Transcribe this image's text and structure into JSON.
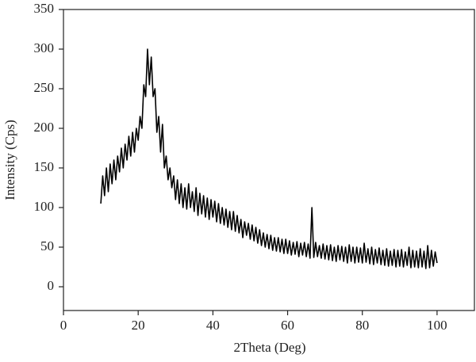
{
  "chart_data": {
    "type": "line",
    "xlabel": "2Theta (Deg)",
    "ylabel": "Intensity (Cps)",
    "xlim": [
      0,
      110
    ],
    "xticks": [
      0,
      20,
      40,
      60,
      80,
      100
    ],
    "ylim": [
      -30,
      350
    ],
    "yticks": [
      0,
      50,
      100,
      150,
      200,
      250,
      300,
      350
    ],
    "x": [
      10,
      10.5,
      11,
      11.5,
      12,
      12.5,
      13,
      13.5,
      14,
      14.5,
      15,
      15.5,
      16,
      16.5,
      17,
      17.5,
      18,
      18.5,
      19,
      19.5,
      20,
      20.5,
      21,
      21.5,
      22,
      22.5,
      23,
      23.5,
      24,
      24.5,
      25,
      25.5,
      26,
      26.5,
      27,
      27.5,
      28,
      28.5,
      29,
      29.5,
      30,
      30.5,
      31,
      31.5,
      32,
      32.5,
      33,
      33.5,
      34,
      34.5,
      35,
      35.5,
      36,
      36.5,
      37,
      37.5,
      38,
      38.5,
      39,
      39.5,
      40,
      40.5,
      41,
      41.5,
      42,
      42.5,
      43,
      43.5,
      44,
      44.5,
      45,
      45.5,
      46,
      46.5,
      47,
      47.5,
      48,
      48.5,
      49,
      49.5,
      50,
      50.5,
      51,
      51.5,
      52,
      52.5,
      53,
      53.5,
      54,
      54.5,
      55,
      55.5,
      56,
      56.5,
      57,
      57.5,
      58,
      58.5,
      59,
      59.5,
      60,
      60.5,
      61,
      61.5,
      62,
      62.5,
      63,
      63.5,
      64,
      64.5,
      65,
      65.5,
      66,
      66.5,
      67,
      67.5,
      68,
      68.5,
      69,
      69.5,
      70,
      70.5,
      71,
      71.5,
      72,
      72.5,
      73,
      73.5,
      74,
      74.5,
      75,
      75.5,
      76,
      76.5,
      77,
      77.5,
      78,
      78.5,
      79,
      79.5,
      80,
      80.5,
      81,
      81.5,
      82,
      82.5,
      83,
      83.5,
      84,
      84.5,
      85,
      85.5,
      86,
      86.5,
      87,
      87.5,
      88,
      88.5,
      89,
      89.5,
      90,
      90.5,
      91,
      91.5,
      92,
      92.5,
      93,
      93.5,
      94,
      94.5,
      95,
      95.5,
      96,
      96.5,
      97,
      97.5,
      98,
      98.5,
      99,
      99.5,
      100
    ],
    "series": [
      {
        "color": "#000000",
        "values": [
          105,
          140,
          115,
          150,
          120,
          155,
          130,
          160,
          135,
          165,
          145,
          175,
          150,
          180,
          160,
          190,
          165,
          195,
          170,
          200,
          185,
          215,
          200,
          255,
          240,
          300,
          255,
          290,
          240,
          250,
          195,
          215,
          170,
          205,
          150,
          165,
          135,
          150,
          125,
          140,
          110,
          135,
          105,
          130,
          100,
          125,
          98,
          130,
          100,
          120,
          95,
          125,
          90,
          118,
          92,
          115,
          88,
          112,
          85,
          110,
          88,
          108,
          82,
          105,
          80,
          100,
          78,
          98,
          75,
          95,
          72,
          95,
          70,
          90,
          68,
          85,
          62,
          82,
          65,
          80,
          60,
          78,
          58,
          75,
          55,
          72,
          52,
          68,
          50,
          66,
          48,
          65,
          46,
          62,
          45,
          62,
          44,
          60,
          42,
          60,
          42,
          58,
          40,
          56,
          41,
          57,
          38,
          55,
          40,
          56,
          38,
          54,
          36,
          100,
          37,
          56,
          38,
          52,
          36,
          54,
          35,
          52,
          34,
          53,
          33,
          50,
          32,
          52,
          34,
          51,
          32,
          50,
          30,
          53,
          32,
          50,
          30,
          50,
          31,
          49,
          30,
          55,
          31,
          48,
          29,
          50,
          28,
          47,
          30,
          49,
          28,
          46,
          27,
          48,
          26,
          45,
          27,
          47,
          25,
          46,
          26,
          47,
          25,
          44,
          27,
          50,
          24,
          46,
          25,
          45,
          24,
          48,
          25,
          45,
          23,
          52,
          24,
          46,
          26,
          44,
          30
        ]
      }
    ]
  }
}
